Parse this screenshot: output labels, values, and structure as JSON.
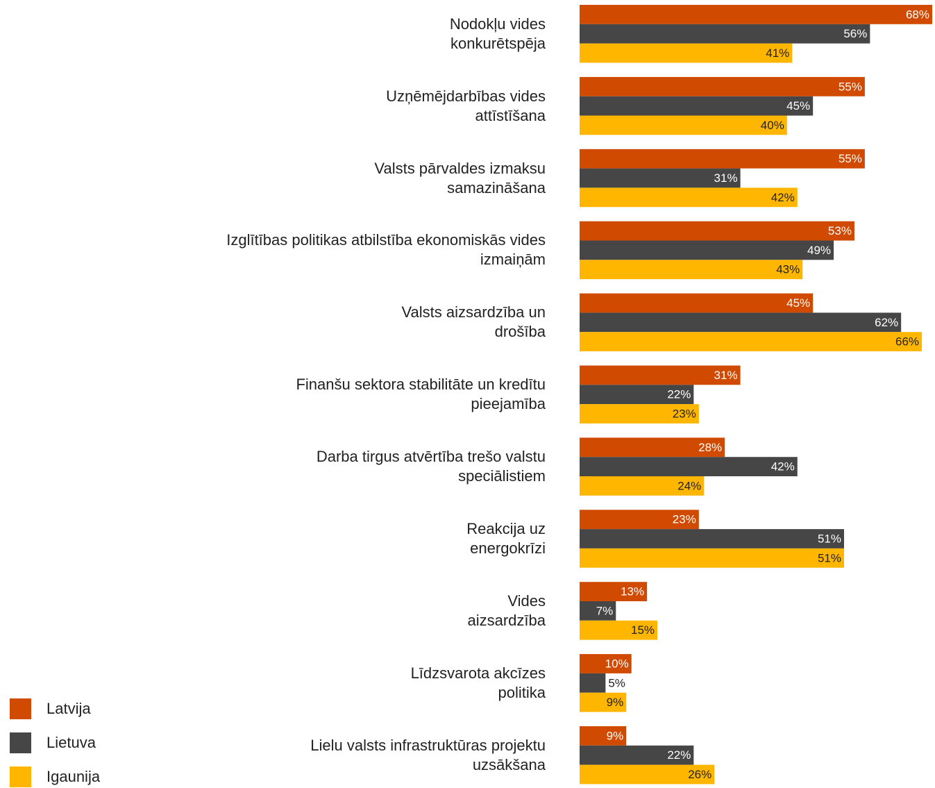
{
  "chart_data": {
    "type": "bar",
    "orientation": "horizontal",
    "categories": [
      "Nodokļu vides\nkonkurētspēja",
      "Uzņēmējdarbības vides\nattīstīšana",
      "Valsts pārvaldes izmaksu\nsamazināšana",
      "Izglītības politikas atbilstība ekonomiskās vides\nizmaiņām",
      "Valsts aizsardzība un\ndrošība",
      "Finanšu sektora stabilitāte un kredītu\npieejamība",
      "Darba tirgus atvērtība trešo valstu\nspeciālistiem",
      "Reakcija uz\nenergokrīzi",
      "Vides\naizsardzība",
      "Līdzsvarota akcīzes\npolitika",
      "Lielu valsts infrastruktūras projektu\nuzsākšana"
    ],
    "series": [
      {
        "name": "Latvija",
        "color": "#d04a02",
        "values": [
          68,
          55,
          55,
          53,
          45,
          31,
          28,
          23,
          13,
          10,
          9
        ],
        "value_labels": [
          "68%",
          "55%",
          "55%",
          "53%",
          "45%",
          "31%",
          "28%",
          "23%",
          "13%",
          "10%",
          "9%"
        ]
      },
      {
        "name": "Lietuva",
        "color": "#464646",
        "values": [
          56,
          45,
          31,
          49,
          62,
          22,
          42,
          51,
          7,
          5,
          22
        ],
        "value_labels": [
          "56%",
          "45%",
          "31%",
          "49%",
          "62%",
          "22%",
          "42%",
          "51%",
          "7%",
          "5%",
          "22%"
        ]
      },
      {
        "name": "Igaunija",
        "color": "#ffb600",
        "values": [
          41,
          40,
          42,
          43,
          66,
          23,
          24,
          51,
          15,
          9,
          26
        ],
        "value_labels": [
          "41%",
          "40%",
          "42%",
          "43%",
          "66%",
          "23%",
          "24%",
          "51%",
          "15%",
          "9%",
          "26%"
        ]
      }
    ],
    "xlim": [
      0,
      68
    ],
    "legend": "bottom-left"
  }
}
